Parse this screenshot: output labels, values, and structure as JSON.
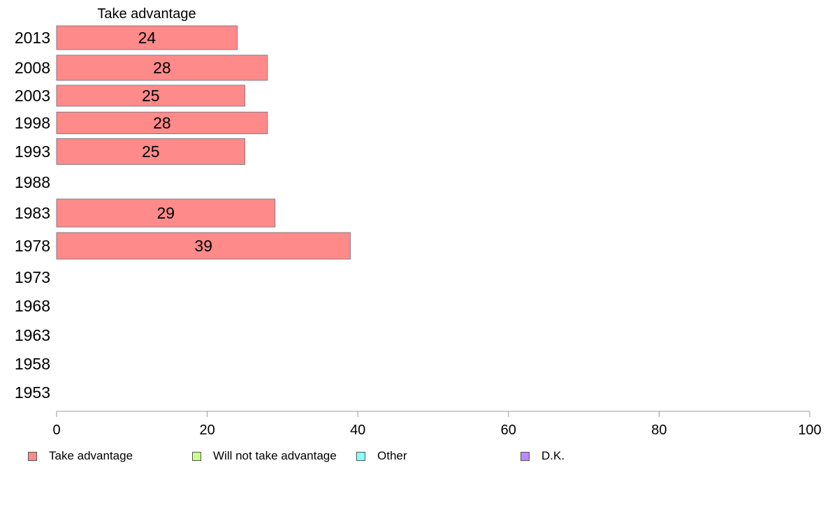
{
  "chart_data": {
    "type": "bar",
    "orientation": "horizontal",
    "title": "Take advantage",
    "xlabel": "",
    "ylabel": "",
    "xlim": [
      0,
      100
    ],
    "x_ticks": [
      "0",
      "20",
      "40",
      "60",
      "80",
      "100"
    ],
    "categories": [
      "2013",
      "2008",
      "2003",
      "1998",
      "1993",
      "1988",
      "1983",
      "1978",
      "1973",
      "1968",
      "1963",
      "1958",
      "1953"
    ],
    "series": [
      {
        "name": "Take advantage",
        "color": "#ff8a8a",
        "values": [
          24,
          28,
          25,
          28,
          25,
          null,
          29,
          39,
          null,
          null,
          null,
          null,
          null
        ]
      }
    ],
    "legend": {
      "placement": "bottom",
      "entries": [
        {
          "label": "Take advantage",
          "color": "#ff8a8a"
        },
        {
          "label": "Will not take advantage",
          "color": "#ccff88"
        },
        {
          "label": "Other",
          "color": "#88ffff"
        },
        {
          "label": "D.K.",
          "color": "#bb88ff"
        }
      ]
    },
    "grid": false
  }
}
